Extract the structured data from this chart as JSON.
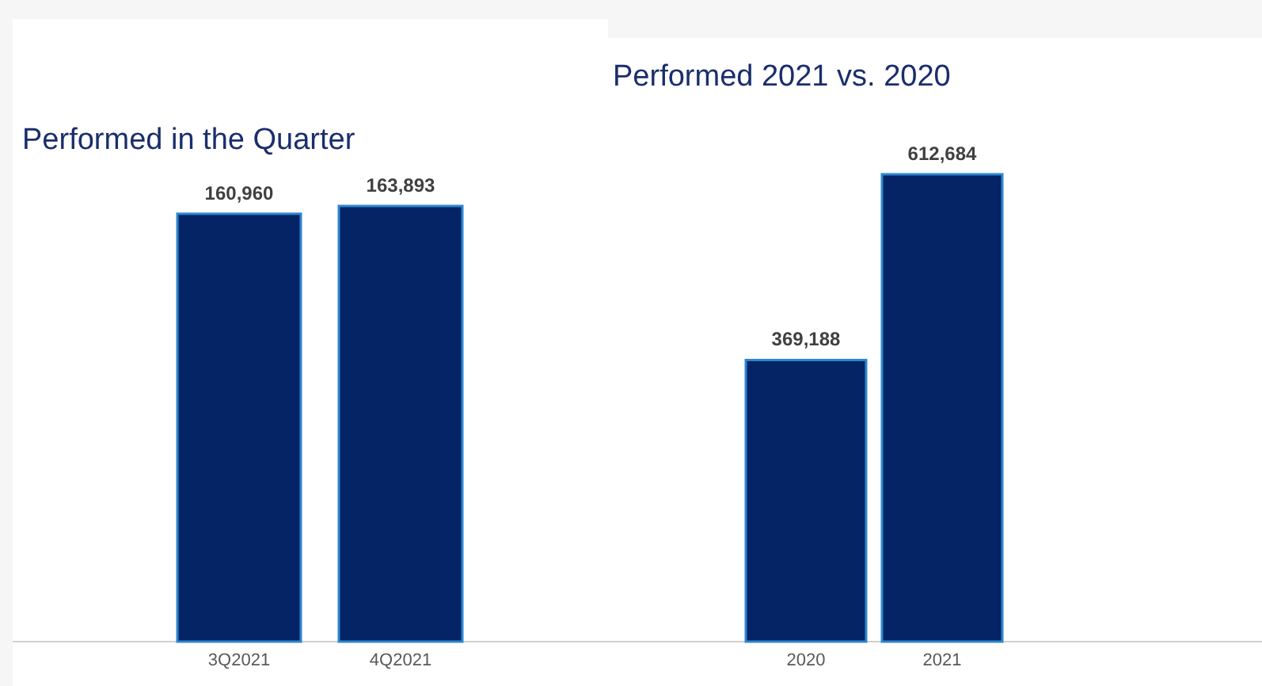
{
  "chart_data": [
    {
      "type": "bar",
      "title": "Performed in the Quarter",
      "categories": [
        "3Q2021",
        "4Q2021"
      ],
      "values": [
        160960,
        163893
      ],
      "value_labels": [
        "160,960",
        "163,893"
      ],
      "color": "#042466"
    },
    {
      "type": "bar",
      "title": "Performed 2021 vs. 2020",
      "categories": [
        "2020",
        "2021"
      ],
      "values": [
        369188,
        612684
      ],
      "value_labels": [
        "369,188",
        "612,684"
      ],
      "color": "#042466"
    }
  ]
}
